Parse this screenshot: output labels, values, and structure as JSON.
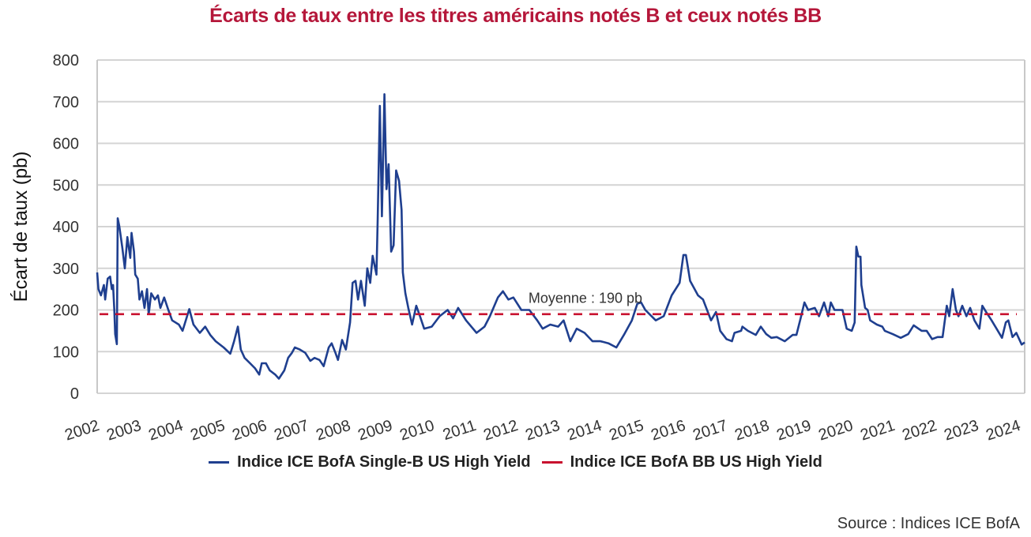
{
  "chart_data": {
    "type": "line",
    "title": "Écarts de taux entre les titres américains notés B et ceux notés BB",
    "xlabel": "",
    "ylabel": "Écart de taux (pb)",
    "ylim": [
      0,
      800
    ],
    "xlim": [
      2002,
      2024.15
    ],
    "yticks": [
      "0",
      "100",
      "200",
      "300",
      "400",
      "500",
      "600",
      "700",
      "800"
    ],
    "xticks": [
      "2002",
      "2003",
      "2004",
      "2005",
      "2006",
      "2007",
      "2008",
      "2009",
      "2010",
      "2011",
      "2012",
      "2013",
      "2014",
      "2015",
      "2016",
      "2017",
      "2018",
      "2019",
      "2020",
      "2021",
      "2022",
      "2023",
      "2024"
    ],
    "grid": true,
    "legend_position": "bottom",
    "series": [
      {
        "name": "Indice ICE BofA Single-B US High Yield",
        "color": "#1F3F8F",
        "points": [
          [
            2002.0,
            290
          ],
          [
            2002.03,
            250
          ],
          [
            2002.09,
            235
          ],
          [
            2002.16,
            260
          ],
          [
            2002.19,
            225
          ],
          [
            2002.25,
            275
          ],
          [
            2002.31,
            280
          ],
          [
            2002.35,
            250
          ],
          [
            2002.38,
            260
          ],
          [
            2002.41,
            200
          ],
          [
            2002.43,
            142
          ],
          [
            2002.47,
            118
          ],
          [
            2002.49,
            420
          ],
          [
            2002.53,
            400
          ],
          [
            2002.6,
            350
          ],
          [
            2002.66,
            300
          ],
          [
            2002.72,
            375
          ],
          [
            2002.79,
            325
          ],
          [
            2002.82,
            385
          ],
          [
            2002.88,
            340
          ],
          [
            2002.91,
            285
          ],
          [
            2002.97,
            275
          ],
          [
            2003.01,
            225
          ],
          [
            2003.07,
            245
          ],
          [
            2003.13,
            205
          ],
          [
            2003.19,
            250
          ],
          [
            2003.23,
            190
          ],
          [
            2003.29,
            240
          ],
          [
            2003.38,
            225
          ],
          [
            2003.45,
            235
          ],
          [
            2003.51,
            205
          ],
          [
            2003.6,
            230
          ],
          [
            2003.7,
            200
          ],
          [
            2003.79,
            175
          ],
          [
            2003.95,
            165
          ],
          [
            2004.04,
            150
          ],
          [
            2004.2,
            202
          ],
          [
            2004.3,
            165
          ],
          [
            2004.45,
            145
          ],
          [
            2004.58,
            160
          ],
          [
            2004.7,
            140
          ],
          [
            2004.83,
            125
          ],
          [
            2005.02,
            110
          ],
          [
            2005.18,
            95
          ],
          [
            2005.27,
            125
          ],
          [
            2005.36,
            160
          ],
          [
            2005.43,
            105
          ],
          [
            2005.52,
            85
          ],
          [
            2005.65,
            72
          ],
          [
            2005.77,
            60
          ],
          [
            2005.87,
            45
          ],
          [
            2005.93,
            72
          ],
          [
            2006.03,
            72
          ],
          [
            2006.12,
            55
          ],
          [
            2006.25,
            45
          ],
          [
            2006.34,
            35
          ],
          [
            2006.47,
            55
          ],
          [
            2006.56,
            85
          ],
          [
            2006.65,
            97
          ],
          [
            2006.72,
            110
          ],
          [
            2006.84,
            105
          ],
          [
            2006.97,
            97
          ],
          [
            2007.09,
            78
          ],
          [
            2007.19,
            85
          ],
          [
            2007.31,
            80
          ],
          [
            2007.41,
            65
          ],
          [
            2007.53,
            110
          ],
          [
            2007.6,
            120
          ],
          [
            2007.69,
            97
          ],
          [
            2007.75,
            80
          ],
          [
            2007.85,
            128
          ],
          [
            2007.94,
            105
          ],
          [
            2008.04,
            170
          ],
          [
            2008.1,
            265
          ],
          [
            2008.17,
            270
          ],
          [
            2008.23,
            225
          ],
          [
            2008.3,
            270
          ],
          [
            2008.39,
            210
          ],
          [
            2008.45,
            300
          ],
          [
            2008.52,
            265
          ],
          [
            2008.58,
            330
          ],
          [
            2008.67,
            285
          ],
          [
            2008.7,
            420
          ],
          [
            2008.75,
            690
          ],
          [
            2008.8,
            425
          ],
          [
            2008.86,
            718
          ],
          [
            2008.91,
            490
          ],
          [
            2008.96,
            550
          ],
          [
            2009.02,
            340
          ],
          [
            2009.08,
            355
          ],
          [
            2009.14,
            535
          ],
          [
            2009.21,
            510
          ],
          [
            2009.27,
            440
          ],
          [
            2009.3,
            290
          ],
          [
            2009.36,
            240
          ],
          [
            2009.43,
            205
          ],
          [
            2009.52,
            165
          ],
          [
            2009.62,
            210
          ],
          [
            2009.71,
            185
          ],
          [
            2009.81,
            155
          ],
          [
            2009.99,
            160
          ],
          [
            2010.18,
            185
          ],
          [
            2010.37,
            200
          ],
          [
            2010.5,
            180
          ],
          [
            2010.62,
            205
          ],
          [
            2010.81,
            175
          ],
          [
            2011.06,
            145
          ],
          [
            2011.25,
            160
          ],
          [
            2011.38,
            185
          ],
          [
            2011.57,
            230
          ],
          [
            2011.69,
            245
          ],
          [
            2011.82,
            225
          ],
          [
            2011.94,
            230
          ],
          [
            2012.13,
            200
          ],
          [
            2012.32,
            200
          ],
          [
            2012.51,
            175
          ],
          [
            2012.64,
            155
          ],
          [
            2012.82,
            165
          ],
          [
            2013.01,
            160
          ],
          [
            2013.14,
            175
          ],
          [
            2013.3,
            125
          ],
          [
            2013.45,
            155
          ],
          [
            2013.64,
            145
          ],
          [
            2013.83,
            125
          ],
          [
            2014.02,
            125
          ],
          [
            2014.21,
            120
          ],
          [
            2014.4,
            110
          ],
          [
            2014.58,
            140
          ],
          [
            2014.77,
            175
          ],
          [
            2014.9,
            215
          ],
          [
            2014.99,
            218
          ],
          [
            2015.09,
            200
          ],
          [
            2015.34,
            175
          ],
          [
            2015.53,
            185
          ],
          [
            2015.72,
            235
          ],
          [
            2015.91,
            265
          ],
          [
            2016.0,
            332
          ],
          [
            2016.06,
            332
          ],
          [
            2016.16,
            270
          ],
          [
            2016.35,
            235
          ],
          [
            2016.47,
            225
          ],
          [
            2016.66,
            175
          ],
          [
            2016.78,
            195
          ],
          [
            2016.88,
            150
          ],
          [
            2017.03,
            130
          ],
          [
            2017.16,
            125
          ],
          [
            2017.22,
            145
          ],
          [
            2017.38,
            150
          ],
          [
            2017.41,
            160
          ],
          [
            2017.54,
            150
          ],
          [
            2017.73,
            140
          ],
          [
            2017.85,
            160
          ],
          [
            2017.98,
            142
          ],
          [
            2018.1,
            133
          ],
          [
            2018.23,
            135
          ],
          [
            2018.42,
            125
          ],
          [
            2018.61,
            140
          ],
          [
            2018.7,
            140
          ],
          [
            2018.8,
            180
          ],
          [
            2018.89,
            218
          ],
          [
            2018.98,
            200
          ],
          [
            2019.14,
            205
          ],
          [
            2019.24,
            185
          ],
          [
            2019.36,
            218
          ],
          [
            2019.46,
            185
          ],
          [
            2019.52,
            218
          ],
          [
            2019.61,
            200
          ],
          [
            2019.8,
            200
          ],
          [
            2019.9,
            155
          ],
          [
            2020.02,
            150
          ],
          [
            2020.09,
            170
          ],
          [
            2020.13,
            352
          ],
          [
            2020.18,
            328
          ],
          [
            2020.23,
            328
          ],
          [
            2020.25,
            260
          ],
          [
            2020.34,
            205
          ],
          [
            2020.4,
            200
          ],
          [
            2020.46,
            175
          ],
          [
            2020.62,
            165
          ],
          [
            2020.75,
            160
          ],
          [
            2020.81,
            150
          ],
          [
            2021.0,
            142
          ],
          [
            2021.19,
            133
          ],
          [
            2021.37,
            142
          ],
          [
            2021.5,
            163
          ],
          [
            2021.69,
            150
          ],
          [
            2021.81,
            150
          ],
          [
            2021.94,
            130
          ],
          [
            2022.07,
            135
          ],
          [
            2022.19,
            135
          ],
          [
            2022.29,
            210
          ],
          [
            2022.35,
            185
          ],
          [
            2022.43,
            250
          ],
          [
            2022.51,
            200
          ],
          [
            2022.57,
            185
          ],
          [
            2022.66,
            210
          ],
          [
            2022.76,
            185
          ],
          [
            2022.85,
            205
          ],
          [
            2022.95,
            175
          ],
          [
            2023.07,
            155
          ],
          [
            2023.14,
            210
          ],
          [
            2023.23,
            195
          ],
          [
            2023.36,
            175
          ],
          [
            2023.48,
            155
          ],
          [
            2023.61,
            133
          ],
          [
            2023.7,
            170
          ],
          [
            2023.76,
            175
          ],
          [
            2023.86,
            135
          ],
          [
            2023.95,
            145
          ],
          [
            2024.08,
            117
          ],
          [
            2024.15,
            122
          ]
        ]
      },
      {
        "name": "Indice ICE BofA BB US High Yield",
        "color": "#C8102E",
        "style": "dashed",
        "constant": 190
      }
    ],
    "annotations": [
      {
        "text": "Moyenne : 190 pb",
        "x": 2012.3,
        "y": 230
      }
    ]
  },
  "source": "Source : Indices ICE BofA"
}
